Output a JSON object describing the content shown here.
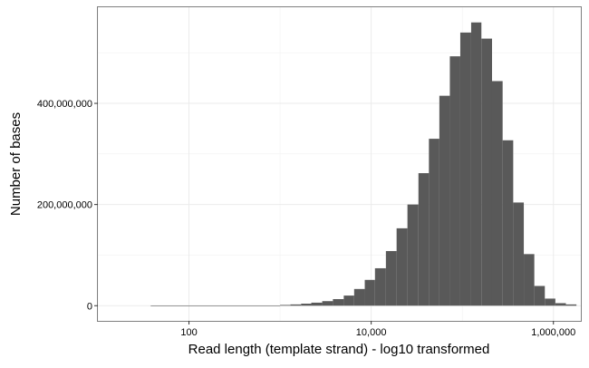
{
  "chart_data": {
    "type": "bar",
    "xlabel": "Read length (template strand) - log10 transformed",
    "ylabel": "Number of bases",
    "x_scale": "log10",
    "xlim": [
      10,
      2000000
    ],
    "ylim": [
      -30000000,
      590000000
    ],
    "x_ticks": [
      {
        "value": 100,
        "label": "100"
      },
      {
        "value": 10000,
        "label": "10,000"
      },
      {
        "value": 1000000,
        "label": "1,000,000"
      }
    ],
    "y_ticks": [
      {
        "value": 0,
        "label": "0"
      },
      {
        "value": 200000000,
        "label": "200,000,000"
      },
      {
        "value": 400000000,
        "label": "400,000,000"
      }
    ],
    "grid": true,
    "bar_color": "#595959",
    "bins": [
      {
        "x0": 38,
        "x1": 1000,
        "value": 300000
      },
      {
        "x0": 1000,
        "x1": 1300,
        "value": 1500000
      },
      {
        "x0": 1300,
        "x1": 1700,
        "value": 2500000
      },
      {
        "x0": 1700,
        "x1": 2200,
        "value": 4000000
      },
      {
        "x0": 2200,
        "x1": 2900,
        "value": 6000000
      },
      {
        "x0": 2900,
        "x1": 3800,
        "value": 9000000
      },
      {
        "x0": 3800,
        "x1": 5000,
        "value": 13000000
      },
      {
        "x0": 5000,
        "x1": 6500,
        "value": 20000000
      },
      {
        "x0": 6500,
        "x1": 8500,
        "value": 33000000
      },
      {
        "x0": 8500,
        "x1": 11000,
        "value": 51000000
      },
      {
        "x0": 11000,
        "x1": 14500,
        "value": 74000000
      },
      {
        "x0": 14500,
        "x1": 19000,
        "value": 108000000
      },
      {
        "x0": 19000,
        "x1": 25000,
        "value": 153000000
      },
      {
        "x0": 25000,
        "x1": 33000,
        "value": 200000000
      },
      {
        "x0": 33000,
        "x1": 43000,
        "value": 262000000
      },
      {
        "x0": 43000,
        "x1": 56000,
        "value": 330000000
      },
      {
        "x0": 56000,
        "x1": 73000,
        "value": 415000000
      },
      {
        "x0": 73000,
        "x1": 95000,
        "value": 493000000
      },
      {
        "x0": 95000,
        "x1": 125000,
        "value": 540000000
      },
      {
        "x0": 125000,
        "x1": 162000,
        "value": 560000000
      },
      {
        "x0": 162000,
        "x1": 212000,
        "value": 528000000
      },
      {
        "x0": 212000,
        "x1": 277000,
        "value": 444000000
      },
      {
        "x0": 277000,
        "x1": 362000,
        "value": 327000000
      },
      {
        "x0": 362000,
        "x1": 473000,
        "value": 204000000
      },
      {
        "x0": 473000,
        "x1": 617000,
        "value": 102000000
      },
      {
        "x0": 617000,
        "x1": 805000,
        "value": 39000000
      },
      {
        "x0": 805000,
        "x1": 1050000,
        "value": 14000000
      },
      {
        "x0": 1050000,
        "x1": 1370000,
        "value": 5000000
      },
      {
        "x0": 1370000,
        "x1": 1790000,
        "value": 2500000
      }
    ]
  }
}
